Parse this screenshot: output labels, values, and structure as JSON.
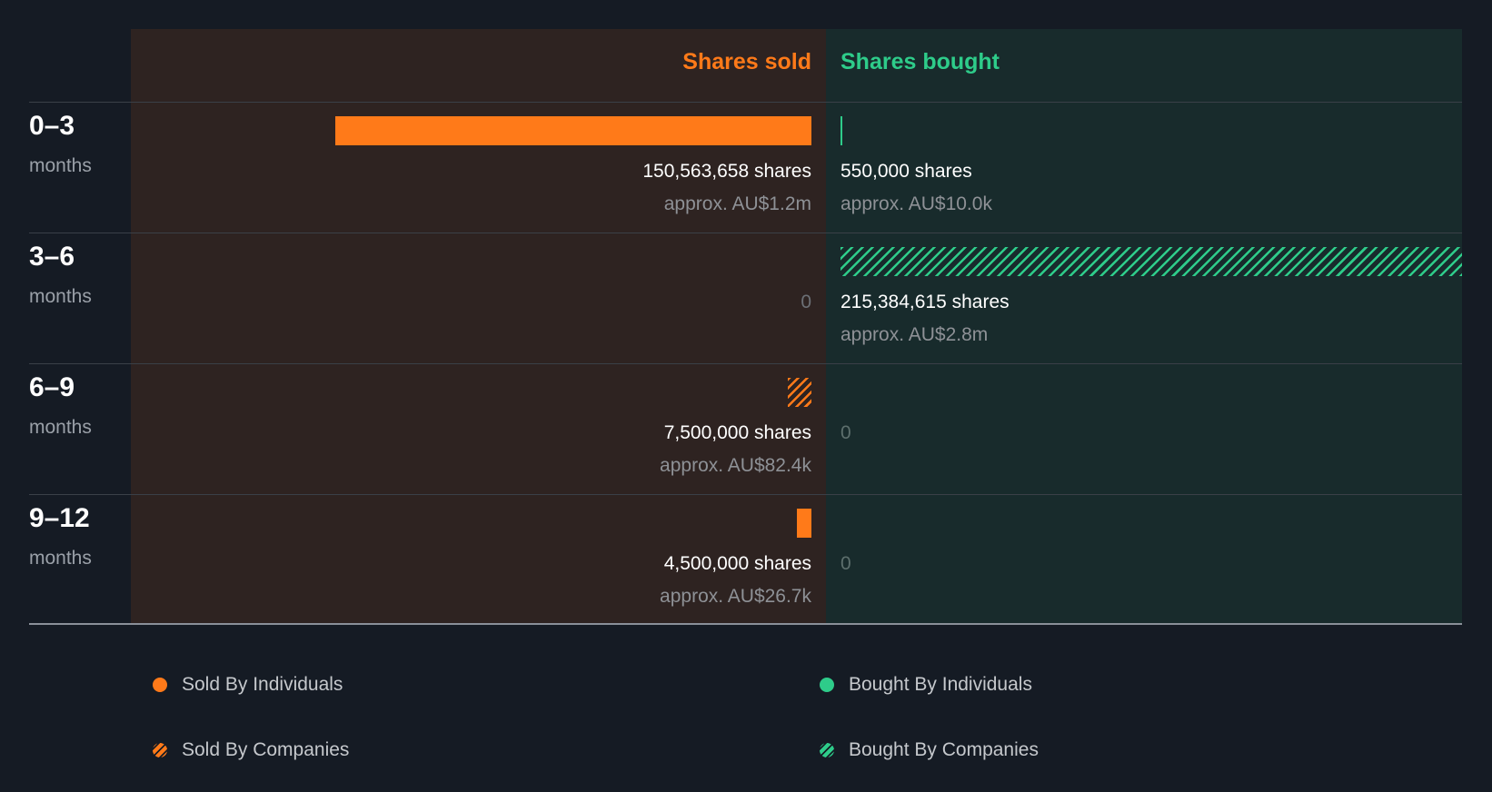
{
  "colors": {
    "background": "#151b24",
    "sold": "#ff7a19",
    "bought": "#2ecc8a",
    "sold_panel": "#2e2321",
    "bought_panel": "#182b2c"
  },
  "headers": {
    "sold": "Shares sold",
    "bought": "Shares bought"
  },
  "chart_data": {
    "type": "bar",
    "orientation": "horizontal-diverging",
    "categories": [
      "0–3 months",
      "3–6 months",
      "6–9 months",
      "9–12 months"
    ],
    "max_value": 215384615,
    "series": [
      {
        "name": "Sold By Individuals",
        "side": "sold",
        "pattern": "solid",
        "values": [
          150563658,
          0,
          0,
          4500000
        ]
      },
      {
        "name": "Sold By Companies",
        "side": "sold",
        "pattern": "hatched",
        "values": [
          0,
          0,
          7500000,
          0
        ]
      },
      {
        "name": "Bought By Individuals",
        "side": "bought",
        "pattern": "solid",
        "values": [
          550000,
          0,
          0,
          0
        ]
      },
      {
        "name": "Bought By Companies",
        "side": "bought",
        "pattern": "hatched",
        "values": [
          0,
          215384615,
          0,
          0
        ]
      }
    ],
    "rows": [
      {
        "period": "0–3",
        "unit": "months",
        "sold": {
          "value": 150563658,
          "pattern": "solid",
          "label": "150,563,658 shares",
          "approx": "approx. AU$1.2m",
          "zero": ""
        },
        "bought": {
          "value": 550000,
          "pattern": "solid",
          "label": "550,000 shares",
          "approx": "approx. AU$10.0k",
          "zero": ""
        }
      },
      {
        "period": "3–6",
        "unit": "months",
        "sold": {
          "value": 0,
          "pattern": "solid",
          "label": "",
          "approx": "",
          "zero": "0"
        },
        "bought": {
          "value": 215384615,
          "pattern": "hatched",
          "label": "215,384,615 shares",
          "approx": "approx. AU$2.8m",
          "zero": ""
        }
      },
      {
        "period": "6–9",
        "unit": "months",
        "sold": {
          "value": 7500000,
          "pattern": "hatched",
          "label": "7,500,000 shares",
          "approx": "approx. AU$82.4k",
          "zero": ""
        },
        "bought": {
          "value": 0,
          "pattern": "solid",
          "label": "",
          "approx": "",
          "zero": "0"
        }
      },
      {
        "period": "9–12",
        "unit": "months",
        "sold": {
          "value": 4500000,
          "pattern": "solid",
          "label": "4,500,000 shares",
          "approx": "approx. AU$26.7k",
          "zero": ""
        },
        "bought": {
          "value": 0,
          "pattern": "solid",
          "label": "",
          "approx": "",
          "zero": "0"
        }
      }
    ],
    "legend": [
      {
        "label": "Sold By Individuals",
        "side": "sold",
        "pattern": "solid"
      },
      {
        "label": "Bought By Individuals",
        "side": "bought",
        "pattern": "solid"
      },
      {
        "label": "Sold By Companies",
        "side": "sold",
        "pattern": "hatched"
      },
      {
        "label": "Bought By Companies",
        "side": "bought",
        "pattern": "hatched"
      }
    ]
  }
}
